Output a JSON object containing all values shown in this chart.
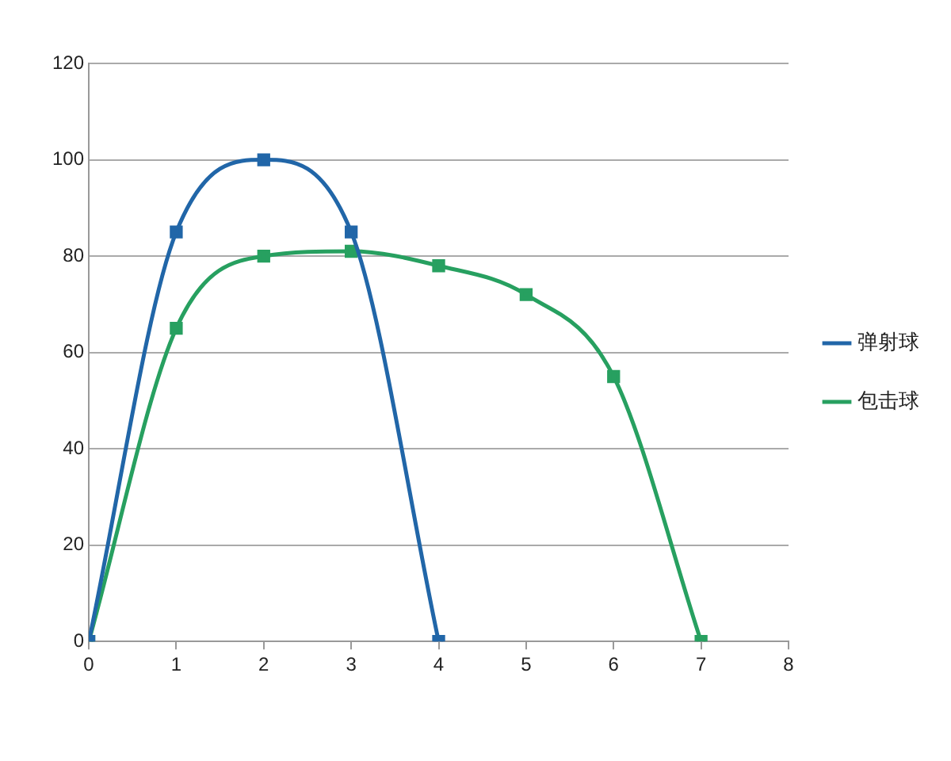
{
  "chart_data": {
    "type": "line",
    "x": [
      0,
      1,
      2,
      3,
      4,
      5,
      6,
      7
    ],
    "series": [
      {
        "name": "弹射球",
        "color": "#2166a8",
        "x": [
          0,
          1,
          2,
          3,
          4
        ],
        "values": [
          0,
          85,
          100,
          85,
          0
        ]
      },
      {
        "name": "包击球",
        "color": "#27a060",
        "values": [
          0,
          65,
          80,
          81,
          78,
          72,
          55,
          0
        ]
      }
    ],
    "xlim": [
      0,
      8
    ],
    "xticks": [
      0,
      1,
      2,
      3,
      4,
      5,
      6,
      7,
      8
    ],
    "ylim": [
      0,
      120
    ],
    "yticks": [
      0,
      20,
      40,
      60,
      80,
      100,
      120
    ],
    "grid": "y",
    "legend": "right",
    "marker": "square",
    "line_style": "solid"
  }
}
